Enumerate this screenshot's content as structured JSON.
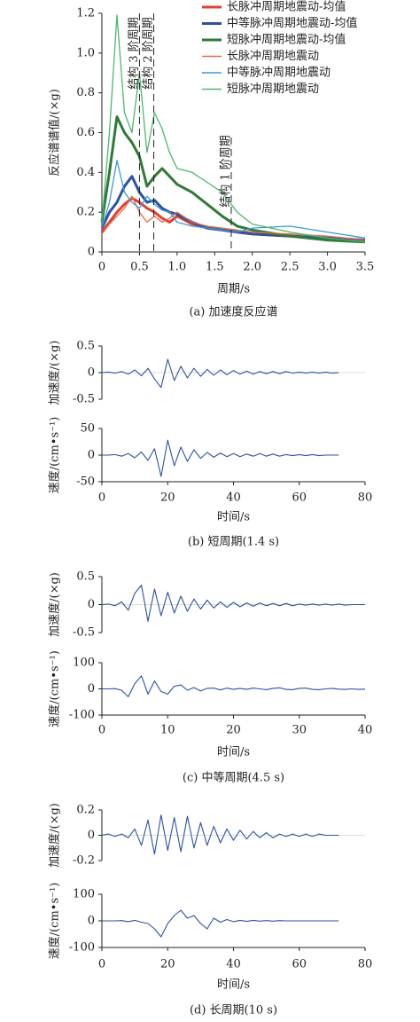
{
  "chart_data": [
    {
      "type": "line",
      "title": "(a) 加速度反应谱",
      "xlabel": "周期/s",
      "ylabel": "反应谱谱值/(×g)",
      "xlim": [
        0,
        3.5
      ],
      "ylim": [
        0,
        1.2
      ],
      "xticks": [
        0,
        0.5,
        {
          "value": 1,
          "label": "1.0"
        },
        1.5,
        {
          "value": 2,
          "label": "2.0"
        },
        2.5,
        {
          "value": 3,
          "label": "3.0"
        },
        3.5
      ],
      "yticks": [
        0,
        0.2,
        0.4,
        0.6,
        0.8,
        {
          "value": 1,
          "label": "1.0"
        },
        1.2
      ],
      "legend": "upper right",
      "x": [
        0,
        0.1,
        0.2,
        0.3,
        0.4,
        0.5,
        0.6,
        0.7,
        0.8,
        0.9,
        1.0,
        1.2,
        1.4,
        1.6,
        1.8,
        2.0,
        2.5,
        3.0,
        3.5
      ],
      "series": [
        {
          "name": "长脉冲周期地震动-均值",
          "color": "#e0402f",
          "values": [
            0.1,
            0.15,
            0.2,
            0.24,
            0.27,
            0.25,
            0.22,
            0.2,
            0.17,
            0.15,
            0.18,
            0.14,
            0.12,
            0.11,
            0.1,
            0.09,
            0.08,
            0.07,
            0.06
          ]
        },
        {
          "name": "中等脉冲周期地震动-均值",
          "color": "#2b52a3",
          "values": [
            0.12,
            0.2,
            0.25,
            0.33,
            0.38,
            0.3,
            0.25,
            0.26,
            0.22,
            0.2,
            0.19,
            0.15,
            0.12,
            0.11,
            0.1,
            0.09,
            0.08,
            0.07,
            0.06
          ]
        },
        {
          "name": "短脉冲周期地震动-均值",
          "color": "#2e7a34",
          "values": [
            0.15,
            0.4,
            0.68,
            0.6,
            0.55,
            0.48,
            0.33,
            0.38,
            0.42,
            0.38,
            0.34,
            0.3,
            0.24,
            0.18,
            0.13,
            0.11,
            0.08,
            0.06,
            0.05
          ]
        },
        {
          "name": "长脉冲周期地震动",
          "color": "#ea6a45",
          "values": [
            0.09,
            0.14,
            0.18,
            0.22,
            0.28,
            0.2,
            0.15,
            0.18,
            0.15,
            0.17,
            0.2,
            0.15,
            0.13,
            0.12,
            0.11,
            0.1,
            0.09,
            0.08,
            0.06
          ]
        },
        {
          "name": "中等脉冲周期地震动",
          "color": "#3a9ad9",
          "values": [
            0.12,
            0.25,
            0.46,
            0.3,
            0.25,
            0.22,
            0.28,
            0.24,
            0.21,
            0.2,
            0.15,
            0.13,
            0.12,
            0.11,
            0.1,
            0.12,
            0.13,
            0.1,
            0.07
          ]
        },
        {
          "name": "短脉冲周期地震动",
          "color": "#4cb86c",
          "values": [
            0.15,
            0.6,
            1.19,
            0.7,
            0.6,
            0.9,
            0.5,
            0.7,
            0.62,
            0.5,
            0.42,
            0.4,
            0.35,
            0.3,
            0.2,
            0.14,
            0.1,
            0.07,
            0.05
          ]
        }
      ],
      "vlines": [
        {
          "x": 0.5,
          "label": "结构 3 阶周期"
        },
        {
          "x": 0.69,
          "label": "结构 2 阶周期"
        },
        {
          "x": 1.72,
          "label": "结构 1 阶周期"
        }
      ]
    },
    {
      "type": "line",
      "ylabel": "加速度/(×g)",
      "xlim": [
        0,
        80
      ],
      "ylim": [
        -0.5,
        0.5
      ],
      "yticks": [
        -0.5,
        0,
        0.5
      ],
      "color": "#2b52a3",
      "x": [
        0,
        2,
        4,
        6,
        8,
        10,
        12,
        14,
        16,
        18,
        20,
        22,
        24,
        26,
        28,
        30,
        32,
        34,
        36,
        38,
        40,
        42,
        44,
        46,
        48,
        50,
        52,
        54,
        56,
        58,
        60,
        62,
        64,
        66,
        68,
        70,
        72
      ],
      "values": [
        0,
        0.01,
        -0.01,
        0.02,
        -0.03,
        0.05,
        -0.06,
        0.08,
        -0.12,
        -0.28,
        0.25,
        -0.15,
        0.12,
        -0.1,
        0.08,
        -0.07,
        0.06,
        -0.05,
        0.05,
        -0.04,
        0.04,
        -0.03,
        0.03,
        -0.03,
        0.02,
        -0.02,
        0.02,
        -0.02,
        0.02,
        -0.01,
        0.01,
        -0.01,
        0.01,
        -0.01,
        0.01,
        -0.01,
        0
      ]
    },
    {
      "type": "line",
      "title": "(b) 短周期(1.4 s)",
      "xlabel": "时间/s",
      "ylabel": "速度/(cm•s⁻¹)",
      "xlim": [
        0,
        80
      ],
      "ylim": [
        -50,
        50
      ],
      "xticks": [
        0,
        20,
        40,
        60,
        80
      ],
      "yticks": [
        -50,
        0,
        50
      ],
      "color": "#2b52a3",
      "x": [
        0,
        2,
        4,
        6,
        8,
        10,
        12,
        14,
        16,
        18,
        20,
        22,
        24,
        26,
        28,
        30,
        32,
        34,
        36,
        38,
        40,
        42,
        44,
        46,
        48,
        50,
        52,
        54,
        56,
        58,
        60,
        62,
        64,
        66,
        68,
        70,
        72
      ],
      "values": [
        0,
        0,
        1,
        -2,
        3,
        -5,
        6,
        -10,
        12,
        -40,
        28,
        -20,
        15,
        -12,
        10,
        -6,
        5,
        -4,
        4,
        -3,
        3,
        -3,
        2,
        -2,
        3,
        -2,
        2,
        -2,
        1,
        -1,
        1,
        -1,
        1,
        -1,
        0,
        0,
        0
      ]
    },
    {
      "type": "line",
      "ylabel": "加速度/(×g)",
      "xlim": [
        0,
        40
      ],
      "ylim": [
        -0.5,
        0.5
      ],
      "yticks": [
        -0.5,
        0,
        0.5
      ],
      "color": "#2b52a3",
      "x": [
        0,
        1,
        2,
        3,
        4,
        5,
        6,
        7,
        8,
        9,
        10,
        11,
        12,
        13,
        14,
        15,
        16,
        17,
        18,
        19,
        20,
        21,
        22,
        23,
        24,
        25,
        26,
        27,
        28,
        29,
        30,
        31,
        32,
        33,
        34,
        35,
        36,
        37,
        38,
        39,
        40
      ],
      "values": [
        0,
        0.01,
        -0.02,
        0.05,
        -0.1,
        0.2,
        0.35,
        -0.3,
        0.28,
        -0.2,
        0.22,
        -0.15,
        0.15,
        -0.12,
        0.1,
        -0.08,
        0.08,
        -0.06,
        0.05,
        -0.05,
        0.04,
        -0.04,
        0.03,
        -0.03,
        0.03,
        -0.02,
        0.02,
        -0.02,
        0.02,
        -0.02,
        0.01,
        -0.01,
        0.01,
        -0.01,
        0.01,
        -0.01,
        0.01,
        -0.01,
        0,
        0,
        0
      ]
    },
    {
      "type": "line",
      "title": "(c) 中等周期(4.5 s)",
      "xlabel": "时间/s",
      "ylabel": "速度/(cm•s⁻¹)",
      "xlim": [
        0,
        40
      ],
      "ylim": [
        -100,
        100
      ],
      "xticks": [
        0,
        10,
        20,
        30,
        40
      ],
      "yticks": [
        -100,
        0,
        100
      ],
      "color": "#2b52a3",
      "x": [
        0,
        1,
        2,
        3,
        4,
        5,
        6,
        7,
        8,
        9,
        10,
        11,
        12,
        13,
        14,
        15,
        16,
        17,
        18,
        19,
        20,
        21,
        22,
        23,
        24,
        25,
        26,
        27,
        28,
        29,
        30,
        31,
        32,
        33,
        34,
        35,
        36,
        37,
        38,
        39,
        40
      ],
      "values": [
        0,
        0,
        1,
        -5,
        -30,
        20,
        50,
        -20,
        30,
        -10,
        -20,
        10,
        15,
        -5,
        5,
        -8,
        2,
        3,
        -4,
        3,
        -2,
        2,
        -2,
        3,
        0,
        -3,
        2,
        4,
        -2,
        -3,
        2,
        3,
        -2,
        -3,
        0,
        2,
        -1,
        -2,
        0,
        -2,
        -1
      ]
    },
    {
      "type": "line",
      "ylabel": "加速度/(×g)",
      "xlim": [
        0,
        80
      ],
      "ylim": [
        -0.2,
        0.2
      ],
      "yticks": [
        -0.2,
        0,
        0.2
      ],
      "color": "#2b52a3",
      "x": [
        0,
        2,
        4,
        6,
        8,
        10,
        12,
        14,
        16,
        18,
        20,
        22,
        24,
        26,
        28,
        30,
        32,
        34,
        36,
        38,
        40,
        42,
        44,
        46,
        48,
        50,
        52,
        54,
        56,
        58,
        60,
        62,
        64,
        66,
        68,
        70,
        72
      ],
      "values": [
        0,
        0.01,
        -0.01,
        0.01,
        -0.02,
        0.05,
        -0.08,
        0.12,
        -0.15,
        0.16,
        -0.12,
        0.14,
        -0.13,
        0.15,
        -0.1,
        0.1,
        -0.08,
        0.07,
        -0.06,
        0.05,
        -0.04,
        0.04,
        -0.03,
        0.03,
        -0.02,
        0.02,
        -0.02,
        0.01,
        -0.01,
        0.01,
        -0.01,
        0.01,
        -0.01,
        0.01,
        0,
        0,
        0
      ]
    },
    {
      "type": "line",
      "title": "(d) 长周期(10 s)",
      "xlabel": "时间/s",
      "ylabel": "速度/(cm•s⁻¹)",
      "xlim": [
        0,
        80
      ],
      "ylim": [
        -100,
        100
      ],
      "xticks": [
        0,
        20,
        40,
        60,
        80
      ],
      "yticks": [
        -100,
        0,
        100
      ],
      "color": "#2b52a3",
      "x": [
        0,
        2,
        4,
        6,
        8,
        10,
        12,
        14,
        16,
        18,
        20,
        22,
        24,
        26,
        28,
        30,
        32,
        34,
        36,
        38,
        40,
        42,
        44,
        46,
        48,
        50,
        52,
        54,
        56,
        58,
        60,
        62,
        64,
        66,
        68,
        70,
        72
      ],
      "values": [
        0,
        0,
        0,
        1,
        -3,
        2,
        -5,
        -10,
        -30,
        -60,
        -10,
        20,
        40,
        10,
        20,
        -10,
        -30,
        10,
        -5,
        5,
        -3,
        2,
        -2,
        2,
        -1,
        1,
        -1,
        1,
        0,
        0,
        0,
        0,
        0,
        0,
        0,
        0,
        0
      ]
    }
  ]
}
